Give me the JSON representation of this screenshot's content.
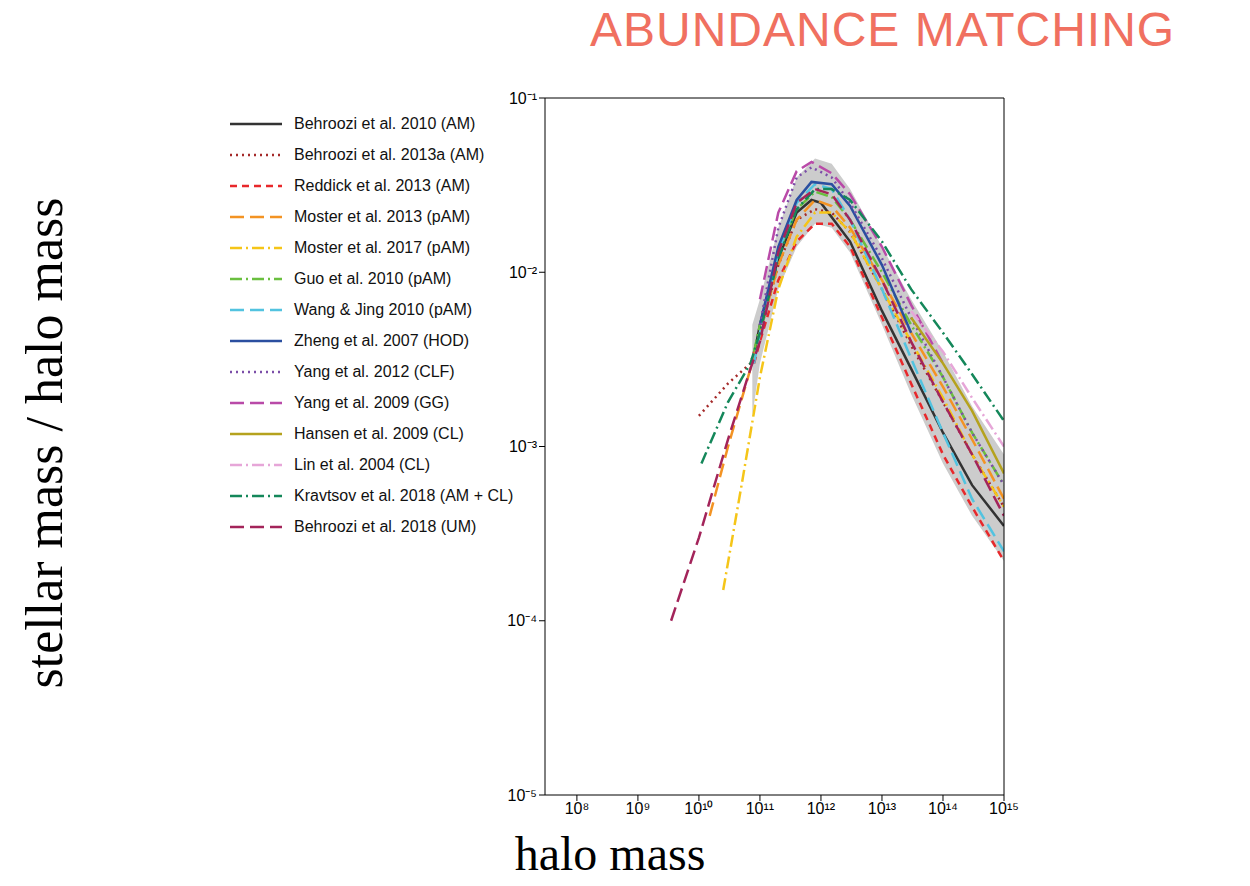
{
  "chart_data": {
    "type": "line",
    "title": "ABUNDANCE MATCHING",
    "x_label": "halo mass",
    "y_label": "stellar mass / halo mass",
    "log": true,
    "grid": false,
    "legend": "upper left",
    "xlim": [
      30000000.0,
      1000000000000000.0
    ],
    "ylim": [
      1e-05,
      0.1
    ],
    "xticks": [
      {
        "value": 100000000.0,
        "label": "10⁸"
      },
      {
        "value": 1000000000.0,
        "label": "10⁹"
      },
      {
        "value": 10000000000.0,
        "label": "10¹⁰"
      },
      {
        "value": 100000000000.0,
        "label": "10¹¹"
      },
      {
        "value": 1000000000000.0,
        "label": "10¹²"
      },
      {
        "value": 10000000000000.0,
        "label": "10¹³"
      },
      {
        "value": 100000000000000.0,
        "label": "10¹⁴"
      },
      {
        "value": 1000000000000000.0,
        "label": "10¹⁵"
      }
    ],
    "yticks": [
      {
        "value": 1e-05,
        "label": "10⁻⁵"
      },
      {
        "value": 0.0001,
        "label": "10⁻⁴"
      },
      {
        "value": 0.001,
        "label": "10⁻³"
      },
      {
        "value": 0.01,
        "label": "10⁻²"
      },
      {
        "value": 0.1,
        "label": "10⁻¹"
      }
    ],
    "band": {
      "color": "#cccccc",
      "x": [
        75000000000.0,
        100000000000.0,
        200000000000.0,
        400000000000.0,
        800000000000.0,
        1500000000000.0,
        3000000000000.0,
        10000000000000.0,
        30000000000000.0,
        100000000000000.0,
        300000000000000.0,
        1000000000000000.0
      ],
      "lower": [
        0.0015,
        0.003,
        0.008,
        0.014,
        0.019,
        0.018,
        0.013,
        0.005,
        0.002,
        0.0008,
        0.0004,
        0.00022
      ],
      "upper": [
        0.005,
        0.007,
        0.018,
        0.035,
        0.045,
        0.042,
        0.03,
        0.014,
        0.007,
        0.0035,
        0.0017,
        0.0009
      ]
    },
    "series": [
      {
        "name": "Behroozi et al. 2010 (AM)",
        "color": "#333333",
        "line_style": "solid",
        "x": [
          75000000000.0,
          100000000000.0,
          200000000000.0,
          400000000000.0,
          700000000000.0,
          1000000000000.0,
          3000000000000.0,
          10000000000000.0,
          30000000000000.0,
          100000000000000.0,
          300000000000000.0,
          1000000000000000.0
        ],
        "values": [
          0.003,
          0.005,
          0.012,
          0.022,
          0.026,
          0.025,
          0.015,
          0.006,
          0.0028,
          0.0012,
          0.0006,
          0.00035
        ]
      },
      {
        "name": "Behroozi et al. 2013a (AM)",
        "color": "#a52a2a",
        "line_style": "dotted",
        "x": [
          10000000000.0,
          30000000000.0,
          70000000000.0,
          100000000000.0,
          200000000000.0,
          400000000000.0,
          800000000000.0,
          1500000000000.0,
          3000000000000.0,
          10000000000000.0,
          30000000000000.0,
          100000000000000.0,
          300000000000000.0,
          1000000000000000.0
        ],
        "values": [
          0.0015,
          0.0023,
          0.003,
          0.0045,
          0.011,
          0.02,
          0.023,
          0.022,
          0.017,
          0.008,
          0.0038,
          0.0018,
          0.0009,
          0.00045
        ]
      },
      {
        "name": "Reddick et al. 2013 (AM)",
        "color": "#e8282b",
        "line_style": "dashed",
        "x": [
          80000000000.0,
          100000000000.0,
          200000000000.0,
          400000000000.0,
          800000000000.0,
          1500000000000.0,
          3000000000000.0,
          10000000000000.0,
          30000000000000.0,
          100000000000000.0,
          300000000000000.0,
          1000000000000000.0
        ],
        "values": [
          0.003,
          0.004,
          0.009,
          0.015,
          0.019,
          0.019,
          0.014,
          0.0055,
          0.0023,
          0.0009,
          0.00045,
          0.00022
        ]
      },
      {
        "name": "Moster et al. 2013 (pAM)",
        "color": "#f39323",
        "line_style": "longdash",
        "x": [
          15000000000.0,
          30000000000.0,
          70000000000.0,
          100000000000.0,
          200000000000.0,
          400000000000.0,
          800000000000.0,
          1500000000000.0,
          3000000000000.0,
          10000000000000.0,
          30000000000000.0,
          100000000000000.0,
          300000000000000.0,
          1000000000000000.0
        ],
        "values": [
          0.0004,
          0.001,
          0.0028,
          0.0045,
          0.011,
          0.02,
          0.026,
          0.024,
          0.018,
          0.009,
          0.0045,
          0.0022,
          0.0011,
          0.0005
        ]
      },
      {
        "name": "Moster et al. 2017 (pAM)",
        "color": "#f5c518",
        "line_style": "dashdot",
        "x": [
          25000000000.0,
          50000000000.0,
          100000000000.0,
          200000000000.0,
          400000000000.0,
          800000000000.0,
          1500000000000.0,
          3000000000000.0,
          10000000000000.0,
          30000000000000.0,
          100000000000000.0,
          300000000000000.0,
          1000000000000000.0
        ],
        "values": [
          0.00015,
          0.0006,
          0.0025,
          0.008,
          0.016,
          0.022,
          0.022,
          0.017,
          0.008,
          0.004,
          0.0019,
          0.0009,
          0.00045
        ]
      },
      {
        "name": "Guo et al. 2010 (pAM)",
        "color": "#6abf3f",
        "line_style": "dashdot",
        "x": [
          80000000000.0,
          100000000000.0,
          200000000000.0,
          400000000000.0,
          800000000000.0,
          1500000000000.0,
          3000000000000.0,
          10000000000000.0,
          30000000000000.0,
          100000000000000.0,
          300000000000000.0,
          1000000000000000.0
        ],
        "values": [
          0.0035,
          0.005,
          0.013,
          0.023,
          0.029,
          0.027,
          0.02,
          0.01,
          0.005,
          0.0025,
          0.0012,
          0.0006
        ]
      },
      {
        "name": "Wang & Jing 2010 (pAM)",
        "color": "#52c3e0",
        "line_style": "longdash",
        "x": [
          80000000000.0,
          100000000000.0,
          200000000000.0,
          400000000000.0,
          800000000000.0,
          1500000000000.0,
          3000000000000.0,
          10000000000000.0,
          30000000000000.0,
          100000000000000.0,
          300000000000000.0,
          1000000000000000.0
        ],
        "values": [
          0.003,
          0.0045,
          0.013,
          0.025,
          0.032,
          0.03,
          0.02,
          0.008,
          0.0032,
          0.0012,
          0.0005,
          0.00025
        ]
      },
      {
        "name": "Zheng et al. 2007 (HOD)",
        "color": "#2b4fa0",
        "line_style": "solid",
        "x": [
          100000000000.0,
          200000000000.0,
          400000000000.0,
          700000000000.0,
          1500000000000.0,
          3000000000000.0,
          10000000000000.0,
          30000000000000.0
        ],
        "values": [
          0.005,
          0.014,
          0.026,
          0.033,
          0.032,
          0.024,
          0.011,
          0.0045
        ]
      },
      {
        "name": "Yang et al. 2012 (CLF)",
        "color": "#7b4ea8",
        "line_style": "dotted",
        "x": [
          100000000000.0,
          200000000000.0,
          400000000000.0,
          700000000000.0,
          1500000000000.0,
          3000000000000.0,
          10000000000000.0,
          30000000000000.0,
          100000000000000.0,
          300000000000000.0,
          1000000000000000.0
        ],
        "values": [
          0.005,
          0.018,
          0.035,
          0.04,
          0.035,
          0.025,
          0.012,
          0.0055,
          0.0025,
          0.0012,
          0.0006
        ]
      },
      {
        "name": "Yang et al. 2009 (GG)",
        "color": "#b94aa8",
        "line_style": "longdash",
        "x": [
          100000000000.0,
          200000000000.0,
          400000000000.0,
          700000000000.0,
          1500000000000.0,
          3000000000000.0,
          10000000000000.0,
          30000000000000.0,
          100000000000000.0
        ],
        "values": [
          0.007,
          0.022,
          0.038,
          0.043,
          0.037,
          0.028,
          0.014,
          0.0065,
          0.003
        ]
      },
      {
        "name": "Hansen et al. 2009 (CL)",
        "color": "#b5a21e",
        "line_style": "solid",
        "x": [
          30000000000000.0,
          100000000000000.0,
          300000000000000.0,
          1000000000000000.0
        ],
        "values": [
          0.0055,
          0.003,
          0.0016,
          0.0007
        ]
      },
      {
        "name": "Lin et al. 2004 (CL)",
        "color": "#e6a6d8",
        "line_style": "dashdot",
        "x": [
          30000000000000.0,
          100000000000000.0,
          300000000000000.0,
          1000000000000000.0
        ],
        "values": [
          0.006,
          0.0035,
          0.0019,
          0.001
        ]
      },
      {
        "name": "Kravtsov et al. 2018 (AM + CL)",
        "color": "#14875a",
        "line_style": "dashdot",
        "x": [
          11000000000.0,
          30000000000.0,
          70000000000.0,
          100000000000.0,
          200000000000.0,
          400000000000.0,
          800000000000.0,
          1500000000000.0,
          3000000000000.0,
          10000000000000.0,
          30000000000000.0,
          100000000000000.0,
          300000000000000.0,
          1000000000000000.0
        ],
        "values": [
          0.0008,
          0.0018,
          0.003,
          0.0045,
          0.012,
          0.023,
          0.03,
          0.03,
          0.026,
          0.015,
          0.008,
          0.0045,
          0.0026,
          0.0014
        ]
      },
      {
        "name": "Behroozi et al. 2018 (UM)",
        "color": "#a3245a",
        "line_style": "longdash",
        "x": [
          3500000000.0,
          10000000000.0,
          30000000000.0,
          70000000000.0,
          100000000000.0,
          200000000000.0,
          400000000000.0,
          800000000000.0,
          1500000000000.0,
          3000000000000.0,
          10000000000000.0,
          30000000000000.0,
          100000000000000.0,
          300000000000000.0,
          1000000000000000.0
        ],
        "values": [
          0.0001,
          0.0003,
          0.0011,
          0.0028,
          0.004,
          0.013,
          0.025,
          0.03,
          0.028,
          0.02,
          0.009,
          0.004,
          0.0018,
          0.0009,
          0.0004
        ]
      }
    ]
  }
}
